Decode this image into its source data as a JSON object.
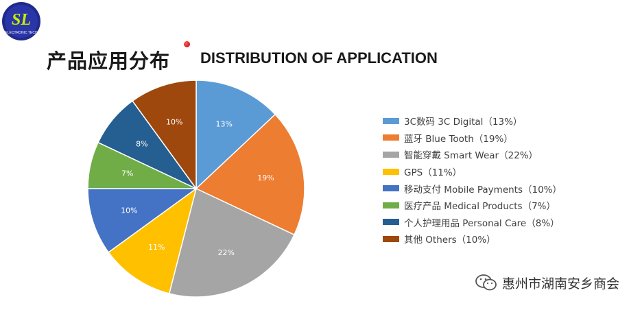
{
  "logo": {
    "text": "SL",
    "subtext": "ELECTRONIC TECH"
  },
  "header": {
    "title_cn": "产品应用分布",
    "title_en": "DISTRIBUTION OF APPLICATION"
  },
  "chart_data": {
    "type": "pie",
    "title": "",
    "categories": [
      "3C数码 3C Digital",
      "蓝牙 Blue Tooth",
      "智能穿戴 Smart Wear",
      "GPS",
      "移动支付 Mobile Payments",
      "医疗产品 Medical Products",
      "个人护理用品 Personal Care",
      "其他 Others"
    ],
    "values": [
      13,
      19,
      22,
      11,
      10,
      7,
      8,
      10
    ],
    "data_labels": [
      "13%",
      "19%",
      "22%",
      "11%",
      "10%",
      "7%",
      "8%",
      "10%"
    ],
    "legend_labels": [
      "3C数码 3C Digital（13%）",
      "蓝牙 Blue Tooth（19%）",
      "智能穿戴 Smart Wear（22%）",
      "GPS（11%）",
      "移动支付 Mobile Payments（10%）",
      "医疗产品 Medical Products（7%）",
      "个人护理用品 Personal Care（8%）",
      "其他 Others（10%）"
    ],
    "colors": [
      "#5B9BD5",
      "#ED7D31",
      "#A5A5A5",
      "#FFC000",
      "#4472C4",
      "#70AD47",
      "#255E91",
      "#9E480E"
    ],
    "legend_position": "right"
  },
  "watermark": {
    "text": "惠州市湖南安乡商会"
  }
}
